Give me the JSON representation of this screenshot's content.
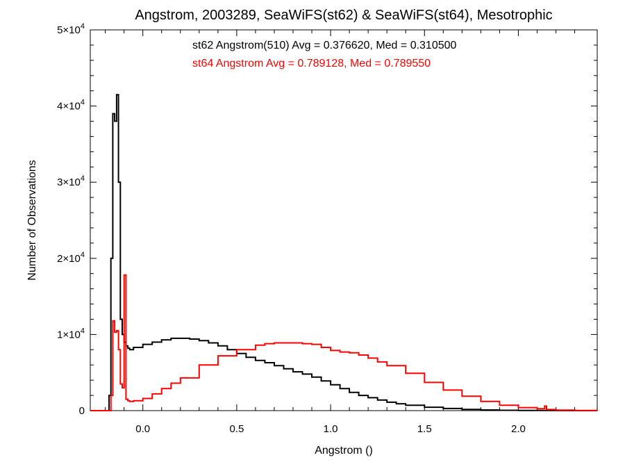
{
  "chart_data": {
    "type": "histogram",
    "title": "Angstrom, 2003289, SeaWiFS(st62) & SeaWiFS(st64), Mesotrophic",
    "xlabel": "Angstrom ()",
    "ylabel": "Number of Observations",
    "xlim": [
      -0.28,
      2.42
    ],
    "ylim": [
      0,
      50000
    ],
    "x_ticks": [
      0.0,
      0.5,
      1.0,
      1.5,
      2.0
    ],
    "x_tick_labels": [
      "0.0",
      "0.5",
      "1.0",
      "1.5",
      "2.0"
    ],
    "y_ticks": [
      0,
      10000,
      20000,
      30000,
      40000,
      50000
    ],
    "y_tick_labels": [
      {
        "base": "0",
        "exp": ""
      },
      {
        "base": "1×10",
        "exp": "4"
      },
      {
        "base": "2×10",
        "exp": "4"
      },
      {
        "base": "3×10",
        "exp": "4"
      },
      {
        "base": "4×10",
        "exp": "4"
      },
      {
        "base": "5×10",
        "exp": "4"
      }
    ],
    "grid": false,
    "annotations": [
      {
        "text": "st62 Angstrom(510) Avg = 0.376620, Med = 0.310500",
        "color": "#000000"
      },
      {
        "text": "st64 Angstrom Avg = 0.789128, Med = 0.789550",
        "color": "#ff0000"
      }
    ],
    "series": [
      {
        "color": "#000000",
        "x": [
          -0.28,
          -0.2,
          -0.18,
          -0.17,
          -0.16,
          -0.15,
          -0.14,
          -0.13,
          -0.12,
          -0.11,
          -0.1,
          -0.09,
          -0.08,
          -0.07,
          -0.05,
          0.0,
          0.05,
          0.1,
          0.15,
          0.2,
          0.25,
          0.3,
          0.35,
          0.4,
          0.45,
          0.5,
          0.55,
          0.6,
          0.65,
          0.7,
          0.75,
          0.8,
          0.85,
          0.9,
          0.95,
          1.0,
          1.05,
          1.1,
          1.15,
          1.2,
          1.25,
          1.3,
          1.35,
          1.4,
          1.5,
          1.6,
          1.7,
          1.8,
          1.9,
          2.0,
          2.1,
          2.2,
          2.3,
          2.42
        ],
        "y": [
          0,
          0,
          2000,
          20000,
          39000,
          38000,
          41500,
          30000,
          12000,
          10000,
          9000,
          8500,
          8200,
          8000,
          8300,
          8700,
          9000,
          9300,
          9500,
          9500,
          9400,
          9200,
          8900,
          8500,
          8000,
          7500,
          7000,
          6600,
          6300,
          5900,
          5500,
          5100,
          4800,
          4400,
          3900,
          3400,
          2900,
          2400,
          2000,
          1700,
          1400,
          1100,
          900,
          700,
          450,
          280,
          160,
          90,
          50,
          30,
          15,
          8,
          4,
          0
        ]
      },
      {
        "color": "#ff0000",
        "x": [
          -0.28,
          -0.18,
          -0.17,
          -0.16,
          -0.15,
          -0.14,
          -0.13,
          -0.12,
          -0.11,
          -0.1,
          -0.09,
          -0.08,
          -0.07,
          -0.05,
          0.0,
          0.05,
          0.1,
          0.15,
          0.2,
          0.3,
          0.4,
          0.5,
          0.6,
          0.65,
          0.7,
          0.75,
          0.8,
          0.85,
          0.9,
          0.95,
          1.0,
          1.05,
          1.1,
          1.15,
          1.2,
          1.25,
          1.3,
          1.4,
          1.5,
          1.6,
          1.7,
          1.8,
          1.9,
          2.0,
          2.1,
          2.14,
          2.15,
          2.2,
          2.3,
          2.42
        ],
        "y": [
          0,
          0,
          2000,
          11800,
          10300,
          10500,
          8000,
          3500,
          3000,
          17800,
          1500,
          1300,
          1200,
          1300,
          1600,
          2200,
          2900,
          3600,
          4300,
          6000,
          7200,
          8000,
          8600,
          8800,
          8900,
          8900,
          8900,
          8800,
          8700,
          8300,
          7900,
          7700,
          7600,
          7300,
          6900,
          6400,
          5900,
          4900,
          3700,
          2700,
          1900,
          1200,
          700,
          400,
          250,
          600,
          150,
          60,
          20,
          0
        ]
      }
    ]
  }
}
